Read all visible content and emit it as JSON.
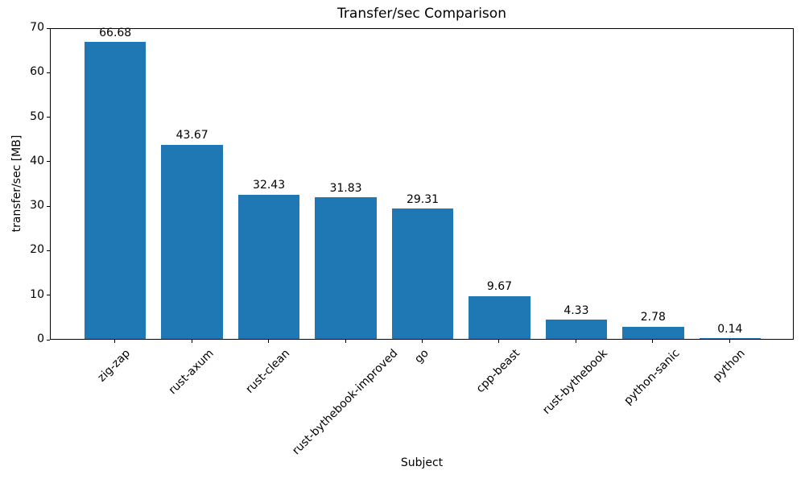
{
  "chart_data": {
    "type": "bar",
    "title": "Transfer/sec Comparison",
    "xlabel": "Subject",
    "ylabel": "transfer/sec [MB]",
    "categories": [
      "zig-zap",
      "rust-axum",
      "rust-clean",
      "rust-bythebook-improved",
      "go",
      "cpp-beast",
      "rust-bythebook",
      "python-sanic",
      "python"
    ],
    "values": [
      66.68,
      43.67,
      32.43,
      31.83,
      29.31,
      9.67,
      4.33,
      2.78,
      0.14
    ],
    "bar_labels": [
      "66.68",
      "43.67",
      "32.43",
      "31.83",
      "29.31",
      "9.67",
      "4.33",
      "2.78",
      "0.14"
    ],
    "ylim": [
      0,
      70
    ],
    "yticks": [
      0,
      10,
      20,
      30,
      40,
      50,
      60,
      70
    ],
    "bar_color": "#1f77b4",
    "axis_color": "#000000",
    "text_color": "#000000",
    "background_color": "#ffffff",
    "grid": false,
    "x_tick_rotation_deg": 45,
    "legend_position": "none"
  }
}
